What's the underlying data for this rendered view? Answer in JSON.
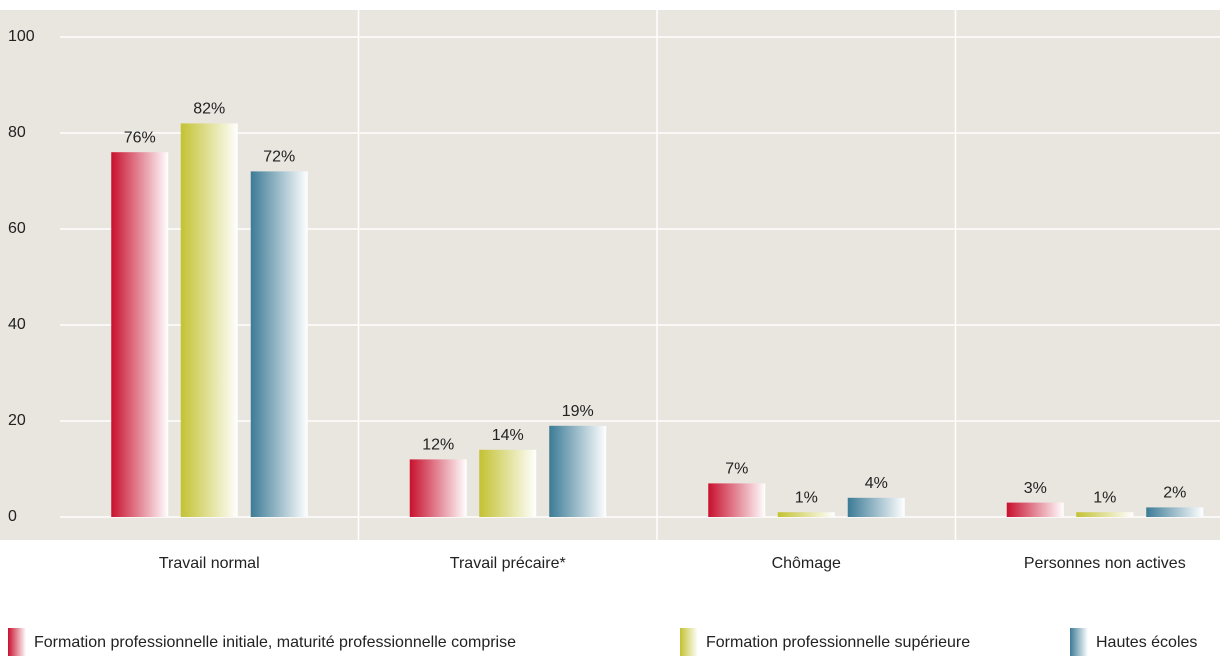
{
  "chart_data": {
    "type": "bar",
    "categories": [
      "Travail normal",
      "Travail précaire*",
      "Chômage",
      "Personnes non actives"
    ],
    "series": [
      {
        "name": "Formation professionnelle initiale, maturité professionnelle comprise",
        "color": "#c8102e",
        "values": [
          76,
          12,
          7,
          3
        ],
        "value_labels": [
          "76%",
          "12%",
          "7%",
          "3%"
        ]
      },
      {
        "name": "Formation professionnelle supérieure",
        "color": "#c3c232",
        "values": [
          82,
          14,
          1,
          1
        ],
        "value_labels": [
          "82%",
          "14%",
          "1%",
          "1%"
        ]
      },
      {
        "name": "Hautes écoles",
        "color": "#3c7b96",
        "values": [
          72,
          19,
          4,
          2
        ],
        "value_labels": [
          "72%",
          "19%",
          "4%",
          "2%"
        ]
      }
    ],
    "ylim": [
      0,
      100
    ],
    "yticks": [
      0,
      20,
      40,
      60,
      80,
      100
    ],
    "grid": true
  }
}
